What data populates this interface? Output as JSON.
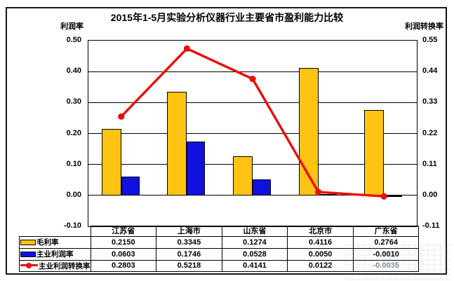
{
  "chart_data": {
    "type": "bar+line",
    "title": "2015年1-5月实验分析仪器行业主要省市盈利能力比较",
    "categories": [
      "江苏省",
      "上海市",
      "山东省",
      "北京市",
      "广东省"
    ],
    "series": [
      {
        "name": "毛利率",
        "type": "bar",
        "axis": "left",
        "color": "#FFC413",
        "values": [
          0.215,
          0.3345,
          0.1274,
          0.4116,
          0.2764
        ]
      },
      {
        "name": "主业利润率",
        "type": "bar",
        "axis": "left",
        "color": "#1010E0",
        "values": [
          0.0603,
          0.1746,
          0.0528,
          0.005,
          -0.001
        ]
      },
      {
        "name": "主业利润转换率",
        "type": "line",
        "axis": "right",
        "color": "#EC0D0D",
        "values": [
          0.2803,
          0.5218,
          0.4141,
          0.0122,
          -0.0035
        ]
      }
    ],
    "left_axis": {
      "label": "利润率",
      "ticks": [
        "0.50",
        "0.40",
        "0.30",
        "0.20",
        "0.10",
        "0.00",
        "-0.10"
      ],
      "ylim": [
        -0.1,
        0.5
      ]
    },
    "right_axis": {
      "label": "利润转换率",
      "ticks": [
        "0.55",
        "0.44",
        "0.33",
        "0.22",
        "0.11",
        "0.00",
        "-0.11"
      ],
      "ylim": [
        -0.11,
        0.55
      ]
    },
    "grid": true,
    "legend_position": "table-left"
  },
  "table": {
    "header": [
      "江苏省",
      "上海市",
      "山东省",
      "北京市",
      "广东省"
    ],
    "rows": [
      {
        "label": "毛利率",
        "swatch": "bar-yellow",
        "values": [
          "0.2150",
          "0.3345",
          "0.1274",
          "0.4116",
          "0.2764"
        ]
      },
      {
        "label": "主业利润率",
        "swatch": "bar-blue",
        "values": [
          "0.0603",
          "0.1746",
          "0.0528",
          "0.0050",
          "-0.0010"
        ]
      },
      {
        "label": "主业利润转换率",
        "swatch": "line-red",
        "values": [
          "0.2803",
          "0.5218",
          "0.4141",
          "0.0122",
          "-0.0035"
        ]
      }
    ]
  }
}
